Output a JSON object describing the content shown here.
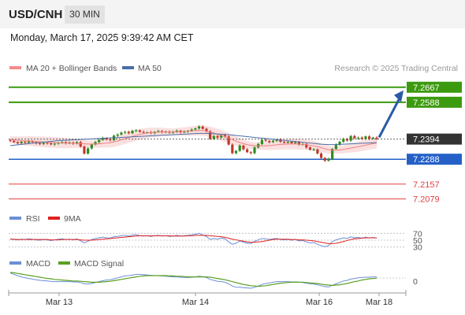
{
  "header": {
    "symbol": "USD/CNH",
    "timeframe": "30 MIN",
    "datetime": "Monday, March 17, 2025 9:39:42 AM CET"
  },
  "legend": {
    "ma20": "MA 20 + Bollinger Bands",
    "ma50": "MA 50",
    "credit": "Research © 2025 Trading Central"
  },
  "colors": {
    "green": "#3c9a0e",
    "blue": "#2460c8",
    "red": "#e04040",
    "candle_up": "#2e8b1e",
    "candle_down": "#c0392b",
    "band": "#f6c6c6",
    "ma50": "#4a6fa5",
    "arrow": "#2a5aa5",
    "last_price_bg": "#333333"
  },
  "chart_data": [
    {
      "type": "candlestick",
      "x_ticks": [
        "Mar 13",
        "Mar 14",
        "Mar 16",
        "Mar 18"
      ],
      "levels": [
        {
          "label": "7.2667",
          "value": 7.2667,
          "kind": "resistance"
        },
        {
          "label": "7.2588",
          "value": 7.2588,
          "kind": "resistance"
        },
        {
          "label": "7.2394",
          "value": 7.2394,
          "kind": "last"
        },
        {
          "label": "7.2288",
          "value": 7.2288,
          "kind": "pivot"
        },
        {
          "label": "7.2157",
          "value": 7.2157,
          "kind": "support"
        },
        {
          "label": "7.2079",
          "value": 7.2079,
          "kind": "support"
        }
      ],
      "ylim": [
        7.204,
        7.272
      ],
      "close": [
        7.2385,
        7.2378,
        7.2372,
        7.238,
        7.2375,
        7.2382,
        7.2378,
        7.2372,
        7.2368,
        7.2374,
        7.2372,
        7.2366,
        7.237,
        7.2375,
        7.2378,
        7.2372,
        7.2376,
        7.237,
        7.2378,
        7.2355,
        7.2318,
        7.2345,
        7.2365,
        7.2378,
        7.239,
        7.24,
        7.2392,
        7.2388,
        7.2412,
        7.2418,
        7.2428,
        7.2432,
        7.2425,
        7.2438,
        7.244,
        7.2432,
        7.2428,
        7.243,
        7.2425,
        7.2432,
        7.2436,
        7.243,
        7.2433,
        7.2428,
        7.2432,
        7.2438,
        7.243,
        7.2433,
        7.2438,
        7.2444,
        7.245,
        7.246,
        7.2448,
        7.2435,
        7.2395,
        7.241,
        7.2402,
        7.2415,
        7.2408,
        7.2365,
        7.232,
        7.2332,
        7.236,
        7.234,
        7.2325,
        7.232,
        7.235,
        7.2368,
        7.239,
        7.2385,
        7.2378,
        7.2385,
        7.2392,
        7.238,
        7.2375,
        7.238,
        7.2372,
        7.2378,
        7.2365,
        7.2368,
        7.235,
        7.2338,
        7.234,
        7.2318,
        7.2295,
        7.228,
        7.229,
        7.2342,
        7.2365,
        7.238,
        7.2395,
        7.2386,
        7.241,
        7.2398,
        7.2402,
        7.2395,
        7.2408,
        7.2396,
        7.2402,
        7.2395
      ],
      "ma20": [
        7.2392,
        7.239,
        7.2388,
        7.2386,
        7.2385,
        7.2384,
        7.2383,
        7.2381,
        7.238,
        7.2379,
        7.2378,
        7.2377,
        7.2376,
        7.2375,
        7.2374,
        7.2373,
        7.2372,
        7.2372,
        7.2371,
        7.237,
        7.2369,
        7.2368,
        7.2368,
        7.2368,
        7.2369,
        7.2371,
        7.2373,
        7.2375,
        7.2379,
        7.2384,
        7.239,
        7.2396,
        7.2402,
        7.2408,
        7.2414,
        7.2419,
        7.2423,
        7.2426,
        7.2428,
        7.243,
        7.2431,
        7.2432,
        7.2432,
        7.2432,
        7.2432,
        7.2433,
        7.2433,
        7.2434,
        7.2435,
        7.2437,
        7.2438,
        7.2439,
        7.2439,
        7.2436,
        7.2431,
        7.2426,
        7.242,
        7.2414,
        7.2407,
        7.24,
        7.2391,
        7.2383,
        7.2376,
        7.237,
        7.2365,
        7.2361,
        7.2359,
        7.2358,
        7.2358,
        7.2359,
        7.236,
        7.2362,
        7.2364,
        7.2366,
        7.2367,
        7.2368,
        7.2368,
        7.2368,
        7.2367,
        7.2366,
        7.2364,
        7.2361,
        7.2358,
        7.2354,
        7.2349,
        7.2343,
        7.2338,
        7.2336,
        7.2336,
        7.2337,
        7.234,
        7.2343,
        7.2347,
        7.235,
        7.2354,
        7.2358,
        7.2362,
        7.2366,
        7.237,
        7.2373
      ],
      "ma50": [
        7.236,
        7.2362,
        7.2364,
        7.2366,
        7.2368,
        7.237,
        7.2372,
        7.2374,
        7.2376,
        7.2378,
        7.238,
        7.2382,
        7.2384,
        7.2386,
        7.2387,
        7.2388,
        7.2389,
        7.239,
        7.2391,
        7.2392,
        7.2393,
        7.2394,
        7.2395,
        7.2396,
        7.2397,
        7.2398,
        7.2399,
        7.24,
        7.2401,
        7.2402,
        7.2403,
        7.2404,
        7.2405,
        7.2406,
        7.2407,
        7.2408,
        7.2409,
        7.241,
        7.2411,
        7.2412,
        7.2413,
        7.2414,
        7.2415,
        7.2416,
        7.2417,
        7.2418,
        7.2419,
        7.242,
        7.2421,
        7.2422,
        7.2423,
        7.2424,
        7.2424,
        7.2424,
        7.2423,
        7.2422,
        7.2421,
        7.242,
        7.2419,
        7.2417,
        7.2415,
        7.2413,
        7.2411,
        7.2409,
        7.2407,
        7.2405,
        7.2403,
        7.2401,
        7.2399,
        7.2397,
        7.2395,
        7.2393,
        7.2391,
        7.2389,
        7.2387,
        7.2385,
        7.2383,
        7.2381,
        7.2379,
        7.2377,
        7.2375,
        7.2373,
        7.2371,
        7.2369,
        7.2367,
        7.2366,
        7.2365,
        7.2365,
        7.2365,
        7.2366,
        7.2367,
        7.2368,
        7.2369,
        7.237,
        7.2371,
        7.2372,
        7.2373,
        7.2374,
        7.2375,
        7.2376
      ]
    },
    {
      "type": "line",
      "legend": [
        "RSI",
        "9MA"
      ],
      "y_ticks": [
        "70",
        "50",
        "30"
      ],
      "ylim": [
        20,
        80
      ],
      "rsi": [
        54,
        52,
        51,
        53,
        52,
        54,
        53,
        51,
        50,
        52,
        51,
        49,
        51,
        53,
        54,
        52,
        53,
        51,
        54,
        48,
        42,
        47,
        52,
        55,
        57,
        59,
        57,
        56,
        60,
        61,
        63,
        64,
        62,
        65,
        66,
        63,
        62,
        63,
        61,
        63,
        64,
        62,
        63,
        61,
        62,
        64,
        62,
        63,
        64,
        66,
        67,
        70,
        65,
        61,
        52,
        55,
        53,
        56,
        54,
        45,
        38,
        41,
        48,
        44,
        41,
        40,
        47,
        51,
        55,
        54,
        52,
        54,
        55,
        52,
        51,
        52,
        50,
        52,
        48,
        49,
        45,
        42,
        43,
        38,
        34,
        31,
        34,
        46,
        51,
        54,
        57,
        55,
        60,
        57,
        58,
        56,
        59,
        56,
        58,
        56
      ],
      "ma9": [
        53,
        53,
        52,
        52,
        52,
        52,
        52,
        52,
        52,
        52,
        52,
        51,
        51,
        51,
        52,
        52,
        52,
        52,
        52,
        51,
        50,
        50,
        50,
        51,
        52,
        53,
        54,
        55,
        56,
        57,
        58,
        59,
        60,
        61,
        62,
        63,
        63,
        63,
        63,
        63,
        63,
        63,
        63,
        63,
        62,
        62,
        62,
        62,
        63,
        63,
        64,
        64,
        64,
        64,
        63,
        62,
        61,
        60,
        58,
        56,
        53,
        51,
        49,
        47,
        45,
        44,
        44,
        45,
        46,
        48,
        50,
        52,
        53,
        53,
        53,
        53,
        52,
        52,
        51,
        51,
        50,
        49,
        48,
        46,
        44,
        42,
        40,
        40,
        41,
        43,
        46,
        49,
        52,
        54,
        55,
        56,
        57,
        57,
        57,
        57
      ]
    },
    {
      "type": "line",
      "legend": [
        "MACD",
        "MACD Signal"
      ],
      "y_ticks": [
        "0"
      ],
      "ylim": [
        -0.0035,
        0.004
      ],
      "macd": [
        0.0028,
        0.0024,
        0.002,
        0.0016,
        0.0013,
        0.0011,
        0.0009,
        0.0007,
        0.0005,
        0.0004,
        0.0003,
        0.0002,
        0.0001,
        0.0001,
        0.0001,
        0.0001,
        0.0001,
        0.0,
        0.0,
        -0.0002,
        -0.0006,
        -0.0007,
        -0.0005,
        -0.0002,
        0.0001,
        0.0004,
        0.0006,
        0.0007,
        0.001,
        0.0013,
        0.0016,
        0.0019,
        0.002,
        0.0022,
        0.0024,
        0.0024,
        0.0023,
        0.0022,
        0.0021,
        0.002,
        0.002,
        0.0019,
        0.0018,
        0.0017,
        0.0016,
        0.0016,
        0.0015,
        0.0014,
        0.0014,
        0.0015,
        0.0016,
        0.0018,
        0.0017,
        0.0014,
        0.0008,
        0.0005,
        0.0002,
        0.0001,
        -0.0001,
        -0.0006,
        -0.0013,
        -0.0017,
        -0.0017,
        -0.0018,
        -0.0019,
        -0.002,
        -0.0017,
        -0.0013,
        -0.0008,
        -0.0005,
        -0.0003,
        -0.0001,
        0.0001,
        0.0001,
        0.0001,
        0.0001,
        0.0,
        0.0,
        -0.0001,
        -0.0002,
        -0.0004,
        -0.0006,
        -0.0007,
        -0.0009,
        -0.0012,
        -0.0015,
        -0.0016,
        -0.0011,
        -0.0006,
        -0.0002,
        0.0003,
        0.0005,
        0.0009,
        0.0011,
        0.0013,
        0.0014,
        0.0015,
        0.0015,
        0.0016,
        0.0016
      ],
      "signal": [
        0.003,
        0.0029,
        0.0027,
        0.0025,
        0.0023,
        0.0021,
        0.0019,
        0.0017,
        0.0015,
        0.0013,
        0.0011,
        0.001,
        0.0008,
        0.0007,
        0.0006,
        0.0005,
        0.0004,
        0.0003,
        0.0003,
        0.0002,
        0.0001,
        0.0,
        -0.0001,
        -0.0001,
        -0.0001,
        0.0,
        0.0001,
        0.0002,
        0.0004,
        0.0006,
        0.0008,
        0.001,
        0.0012,
        0.0014,
        0.0016,
        0.0018,
        0.0019,
        0.002,
        0.002,
        0.002,
        0.002,
        0.002,
        0.002,
        0.0019,
        0.0019,
        0.0018,
        0.0018,
        0.0017,
        0.0016,
        0.0016,
        0.0016,
        0.0016,
        0.0016,
        0.0016,
        0.0015,
        0.0013,
        0.0011,
        0.0009,
        0.0007,
        0.0004,
        0.0001,
        -0.0002,
        -0.0005,
        -0.0008,
        -0.001,
        -0.0012,
        -0.0013,
        -0.0014,
        -0.0013,
        -0.0012,
        -0.001,
        -0.0008,
        -0.0006,
        -0.0004,
        -0.0003,
        -0.0002,
        -0.0001,
        -0.0001,
        -0.0001,
        -0.0001,
        -0.0002,
        -0.0003,
        -0.0004,
        -0.0005,
        -0.0007,
        -0.0009,
        -0.001,
        -0.0011,
        -0.001,
        -0.0009,
        -0.0007,
        -0.0005,
        -0.0002,
        0.0001,
        0.0003,
        0.0006,
        0.0008,
        0.001,
        0.0011,
        0.0012
      ]
    }
  ]
}
